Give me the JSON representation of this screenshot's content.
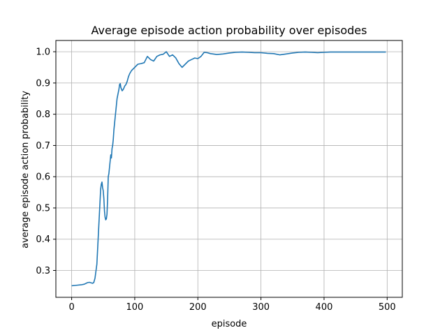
{
  "chart_data": {
    "type": "line",
    "title": "Average episode action probability over episodes",
    "xlabel": "episode",
    "ylabel": "average episode action probability",
    "xlim": [
      -25,
      524
    ],
    "ylim": [
      0.214,
      1.036
    ],
    "xticks": [
      0,
      100,
      200,
      300,
      400,
      500
    ],
    "yticks": [
      0.3,
      0.4,
      0.5,
      0.6,
      0.7,
      0.8,
      0.9,
      1.0
    ],
    "xtick_labels": [
      "0",
      "100",
      "200",
      "300",
      "400",
      "500"
    ],
    "ytick_labels": [
      "0.3",
      "0.4",
      "0.5",
      "0.6",
      "0.7",
      "0.8",
      "0.9",
      "1.0"
    ],
    "grid": true,
    "line_color": "#1f77b4",
    "series": [
      {
        "x": [
          0,
          5,
          10,
          15,
          20,
          25,
          28,
          30,
          33,
          35,
          37,
          38,
          40,
          41,
          42,
          43,
          44,
          45,
          46,
          47,
          48,
          49,
          50,
          51,
          52,
          53,
          54,
          55,
          56,
          57,
          58,
          59,
          60,
          61,
          62,
          63,
          64,
          65,
          66,
          67,
          68,
          69,
          70,
          71,
          72,
          73,
          74,
          75,
          76,
          77,
          78,
          79,
          80,
          82,
          84,
          86,
          88,
          90,
          92,
          95,
          100,
          105,
          110,
          115,
          120,
          125,
          130,
          135,
          140,
          145,
          150,
          155,
          160,
          165,
          170,
          175,
          180,
          185,
          190,
          195,
          200,
          205,
          210,
          215,
          220,
          230,
          240,
          250,
          260,
          270,
          280,
          290,
          300,
          310,
          320,
          330,
          340,
          350,
          360,
          370,
          380,
          390,
          400,
          410,
          420,
          430,
          440,
          450,
          460,
          470,
          480,
          490,
          498
        ],
        "y": [
          0.251,
          0.252,
          0.253,
          0.254,
          0.256,
          0.261,
          0.262,
          0.261,
          0.259,
          0.261,
          0.275,
          0.29,
          0.32,
          0.36,
          0.4,
          0.44,
          0.48,
          0.52,
          0.56,
          0.575,
          0.583,
          0.565,
          0.555,
          0.53,
          0.49,
          0.47,
          0.462,
          0.465,
          0.48,
          0.53,
          0.6,
          0.61,
          0.63,
          0.65,
          0.67,
          0.66,
          0.69,
          0.7,
          0.72,
          0.75,
          0.77,
          0.79,
          0.81,
          0.83,
          0.85,
          0.86,
          0.87,
          0.88,
          0.895,
          0.898,
          0.885,
          0.88,
          0.875,
          0.88,
          0.89,
          0.895,
          0.905,
          0.92,
          0.93,
          0.94,
          0.95,
          0.96,
          0.962,
          0.965,
          0.985,
          0.975,
          0.97,
          0.985,
          0.99,
          0.992,
          1.0,
          0.985,
          0.99,
          0.98,
          0.962,
          0.95,
          0.96,
          0.97,
          0.975,
          0.98,
          0.978,
          0.985,
          0.998,
          0.997,
          0.994,
          0.991,
          0.993,
          0.996,
          0.998,
          0.999,
          0.998,
          0.997,
          0.997,
          0.995,
          0.994,
          0.99,
          0.993,
          0.996,
          0.998,
          0.999,
          0.998,
          0.997,
          0.998,
          0.999,
          0.999,
          0.999,
          0.999,
          0.999,
          0.999,
          0.999,
          0.999,
          0.999,
          0.999
        ]
      }
    ]
  }
}
